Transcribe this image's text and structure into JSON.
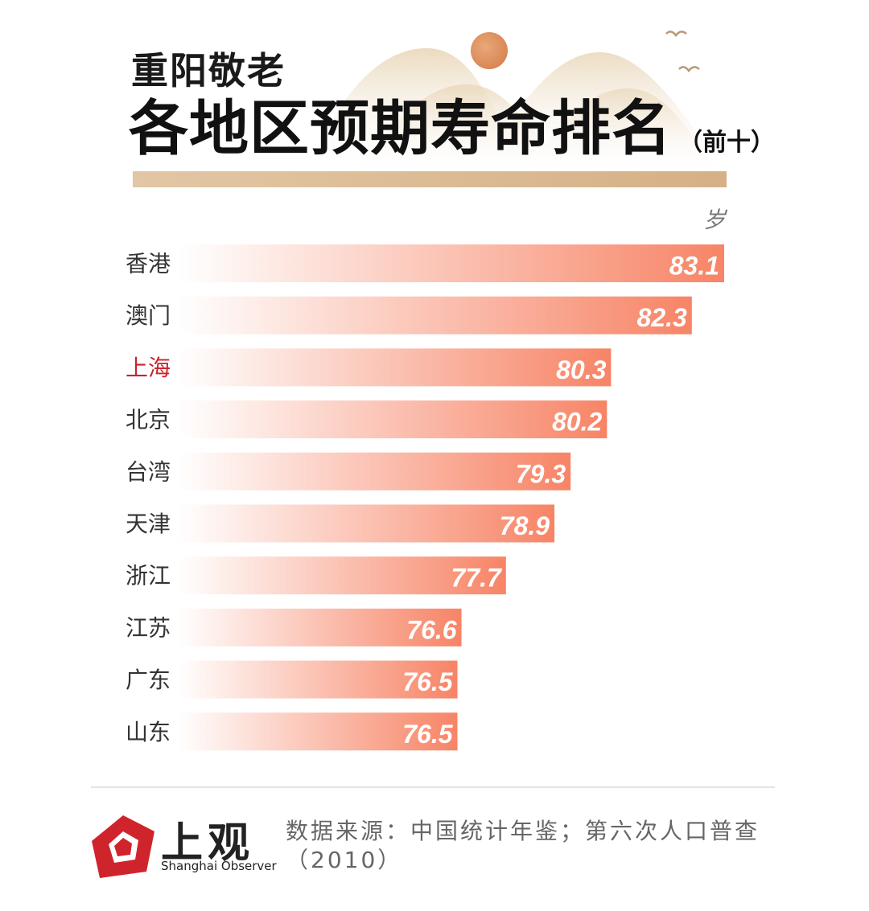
{
  "header": {
    "subtitle": "重阳敬老",
    "title": "各地区预期寿命排名",
    "title_note": "（前十）"
  },
  "chart_data": {
    "type": "bar",
    "orientation": "horizontal",
    "unit_label": "岁",
    "categories": [
      "香港",
      "澳门",
      "上海",
      "北京",
      "台湾",
      "天津",
      "浙江",
      "江苏",
      "广东",
      "山东"
    ],
    "values": [
      83.1,
      82.3,
      80.3,
      80.2,
      79.3,
      78.9,
      77.7,
      76.6,
      76.5,
      76.5
    ],
    "highlight": "上海",
    "xlim": [
      69.6,
      83.1
    ],
    "colors": {
      "bar_start": "#ffffff",
      "bar_end": "#f78466",
      "highlight_label": "#c8232c",
      "label": "#333333",
      "value": "#ffffff"
    }
  },
  "footer": {
    "logo_cn": "上观",
    "logo_en": "Shanghai Observer",
    "source_line1": "数据来源：中国统计年鉴；第六次人口普查",
    "source_line2": "（2010）"
  }
}
